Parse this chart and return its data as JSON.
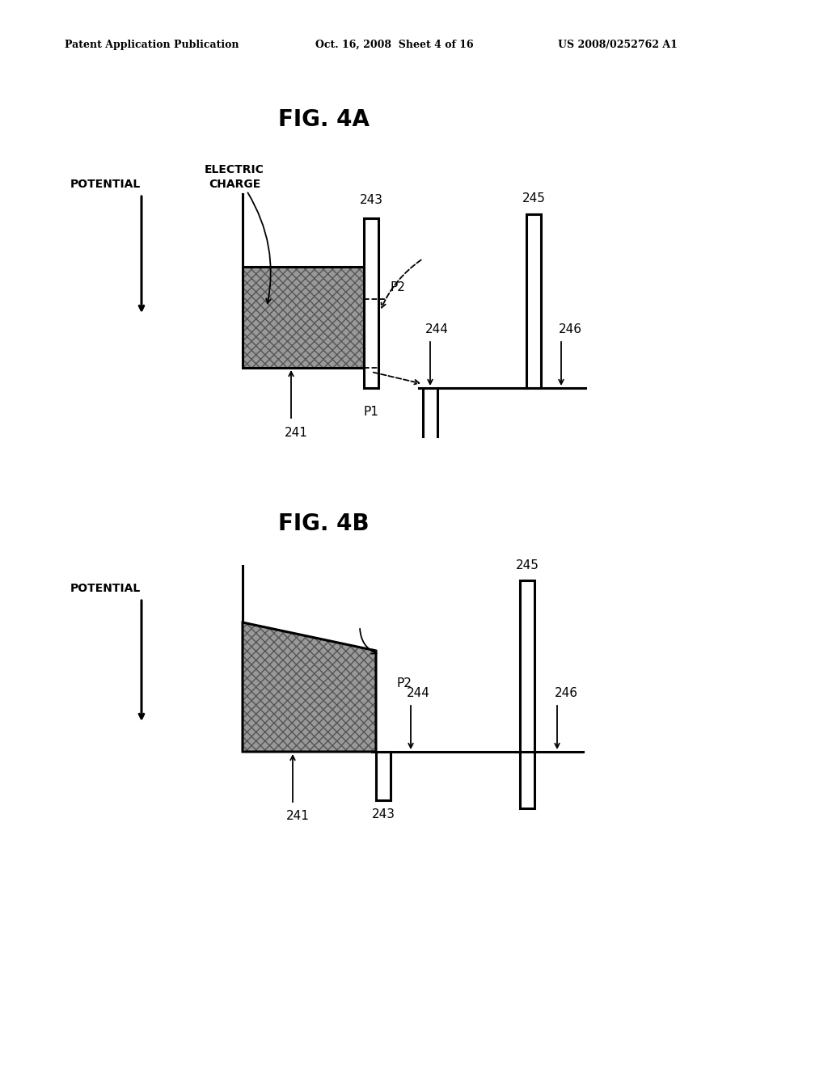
{
  "background_color": "#ffffff",
  "header_left": "Patent Application Publication",
  "header_mid": "Oct. 16, 2008  Sheet 4 of 16",
  "header_right": "US 2008/0252762 A1",
  "fig4a_title": "FIG. 4A",
  "fig4b_title": "FIG. 4B",
  "gray_fill": "#999999"
}
